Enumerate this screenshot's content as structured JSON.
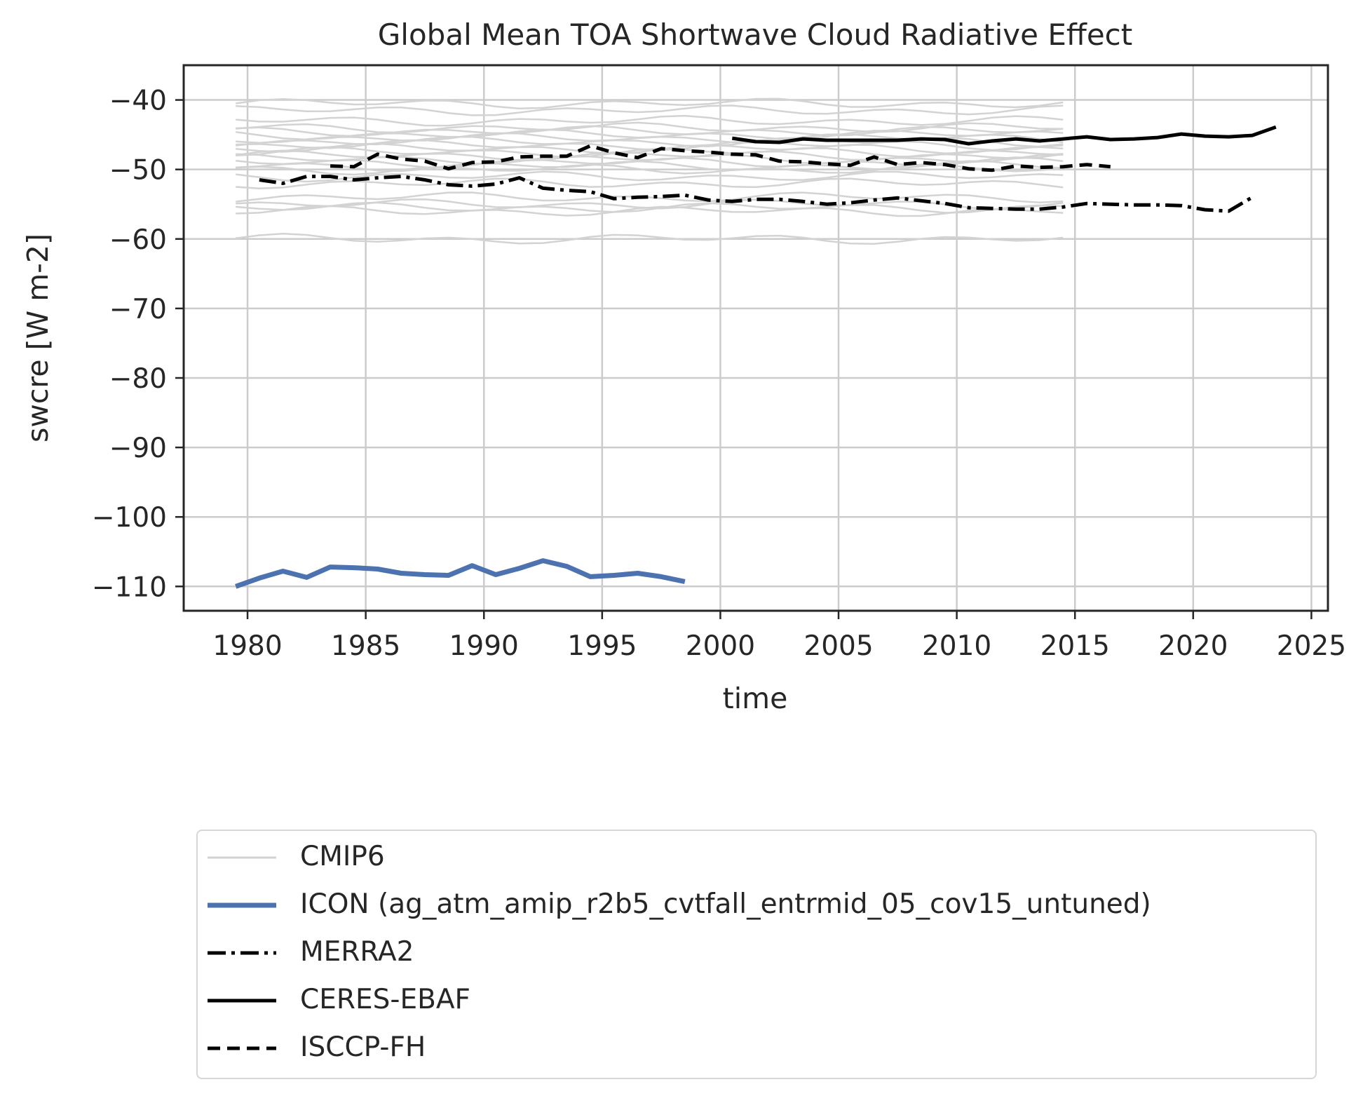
{
  "chart_data": {
    "type": "line",
    "title": "Global Mean TOA Shortwave Cloud Radiative Effect",
    "xlabel": "time",
    "ylabel": "swcre [W m-2]",
    "xlim": [
      1977.3,
      2025.7
    ],
    "ylim": [
      -113.5,
      -35
    ],
    "xticks": [
      1980,
      1985,
      1990,
      1995,
      2000,
      2005,
      2010,
      2015,
      2020,
      2025
    ],
    "yticks": [
      -110,
      -100,
      -90,
      -80,
      -70,
      -60,
      -50,
      -40
    ],
    "xtick_labels": [
      "1980",
      "1985",
      "1990",
      "1995",
      "2000",
      "2005",
      "2010",
      "2015",
      "2020",
      "2025"
    ],
    "ytick_labels": [
      "−110",
      "−100",
      "−90",
      "−80",
      "−70",
      "−60",
      "−50",
      "−40"
    ],
    "grid": true,
    "legend_position": "below",
    "cmip6_color": "#d3d3d3",
    "cmip6_x_range": [
      1979.5,
      2014.5
    ],
    "cmip6_models": [
      -40.5,
      -41.5,
      -43.0,
      -44.0,
      -44.5,
      -45.0,
      -45.5,
      -46.0,
      -46.5,
      -47.0,
      -47.5,
      -48.0,
      -48.5,
      -49.0,
      -49.5,
      -50.0,
      -51.0,
      -52.0,
      -54.0,
      -55.0,
      -55.5,
      -56.0,
      -60.0
    ],
    "series": [
      {
        "name": "ICON (ag_atm_amip_r2b5_cvtfall_entrmid_05_cov15_untuned)",
        "style": "solid",
        "color": "#4c72b0",
        "x": [
          1979.5,
          1980.5,
          1981.5,
          1982.5,
          1983.5,
          1984.5,
          1985.5,
          1986.5,
          1987.5,
          1988.5,
          1989.5,
          1990.5,
          1991.5,
          1992.5,
          1993.5,
          1994.5,
          1995.5,
          1996.5,
          1997.5,
          1998.5
        ],
        "y": [
          -110.0,
          -108.8,
          -107.8,
          -108.7,
          -107.2,
          -107.3,
          -107.5,
          -108.1,
          -108.3,
          -108.4,
          -107.0,
          -108.3,
          -107.4,
          -106.3,
          -107.1,
          -108.6,
          -108.4,
          -108.1,
          -108.6,
          -109.3
        ]
      },
      {
        "name": "MERRA2",
        "style": "dashdot",
        "color": "#000000",
        "x": [
          1980.5,
          1981.5,
          1982.5,
          1983.5,
          1984.5,
          1985.5,
          1986.5,
          1987.5,
          1988.5,
          1989.5,
          1990.5,
          1991.5,
          1992.5,
          1993.5,
          1994.5,
          1995.5,
          1996.5,
          1997.5,
          1998.5,
          1999.5,
          2000.5,
          2001.5,
          2002.5,
          2003.5,
          2004.5,
          2005.5,
          2006.5,
          2007.5,
          2008.5,
          2009.5,
          2010.5,
          2011.5,
          2012.5,
          2013.5,
          2014.5,
          2015.5,
          2016.5,
          2017.5,
          2018.5,
          2019.5,
          2020.5,
          2021.5,
          2022.5
        ],
        "y": [
          -51.5,
          -52.0,
          -51.0,
          -51.0,
          -51.5,
          -51.2,
          -51.0,
          -51.5,
          -52.2,
          -52.4,
          -52.1,
          -51.2,
          -52.7,
          -53.0,
          -53.2,
          -54.2,
          -54.0,
          -53.9,
          -53.7,
          -54.4,
          -54.6,
          -54.3,
          -54.3,
          -54.6,
          -55.0,
          -54.8,
          -54.4,
          -54.1,
          -54.5,
          -54.9,
          -55.5,
          -55.6,
          -55.7,
          -55.7,
          -55.4,
          -54.9,
          -55.0,
          -55.1,
          -55.1,
          -55.2,
          -55.8,
          -56.0,
          -54.0
        ]
      },
      {
        "name": "CERES-EBAF",
        "style": "solid",
        "color": "#000000",
        "x": [
          2000.5,
          2001.5,
          2002.5,
          2003.5,
          2004.5,
          2005.5,
          2006.5,
          2007.5,
          2008.5,
          2009.5,
          2010.5,
          2011.5,
          2012.5,
          2013.5,
          2014.5,
          2015.5,
          2016.5,
          2017.5,
          2018.5,
          2019.5,
          2020.5,
          2021.5,
          2022.5,
          2023.5
        ],
        "y": [
          -45.5,
          -46.0,
          -46.1,
          -45.6,
          -45.8,
          -45.8,
          -45.8,
          -45.8,
          -45.6,
          -45.7,
          -46.3,
          -45.9,
          -45.6,
          -45.9,
          -45.6,
          -45.3,
          -45.7,
          -45.6,
          -45.4,
          -44.9,
          -45.2,
          -45.3,
          -45.1,
          -43.9
        ]
      },
      {
        "name": "ISCCP-FH",
        "style": "dashed",
        "color": "#000000",
        "x": [
          1983.5,
          1984.5,
          1985.5,
          1986.5,
          1987.5,
          1988.5,
          1989.5,
          1990.5,
          1991.5,
          1992.5,
          1993.5,
          1994.5,
          1995.5,
          1996.5,
          1997.5,
          1998.5,
          1999.5,
          2000.5,
          2001.5,
          2002.5,
          2003.5,
          2004.5,
          2005.5,
          2006.5,
          2007.5,
          2008.5,
          2009.5,
          2010.5,
          2011.5,
          2012.5,
          2013.5,
          2014.5,
          2015.5,
          2016.5
        ],
        "y": [
          -49.5,
          -49.6,
          -47.8,
          -48.5,
          -48.8,
          -49.9,
          -49.0,
          -48.9,
          -48.2,
          -48.1,
          -48.1,
          -46.6,
          -47.6,
          -48.3,
          -47.0,
          -47.3,
          -47.5,
          -47.8,
          -47.9,
          -48.8,
          -48.9,
          -49.2,
          -49.4,
          -48.2,
          -49.3,
          -49.0,
          -49.3,
          -49.9,
          -50.1,
          -49.5,
          -49.7,
          -49.6,
          -49.3,
          -49.6
        ]
      }
    ],
    "legend": [
      {
        "label": "CMIP6",
        "color": "#d3d3d3",
        "style": "thin"
      },
      {
        "label": "ICON (ag_atm_amip_r2b5_cvtfall_entrmid_05_cov15_untuned)",
        "color": "#4c72b0",
        "style": "solid-thick"
      },
      {
        "label": "MERRA2",
        "color": "#000000",
        "style": "dashdot"
      },
      {
        "label": "CERES-EBAF",
        "color": "#000000",
        "style": "solid"
      },
      {
        "label": "ISCCP-FH",
        "color": "#000000",
        "style": "dashed"
      }
    ]
  }
}
